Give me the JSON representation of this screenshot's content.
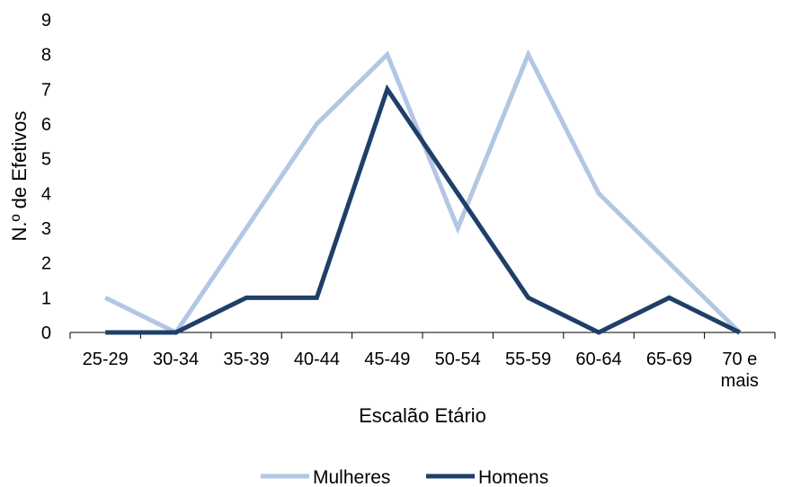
{
  "chart_data": {
    "type": "line",
    "title": "",
    "xlabel": "Escalão Etário",
    "ylabel": "N.º de Efetivos",
    "categories": [
      "25-29",
      "30-34",
      "35-39",
      "40-44",
      "45-49",
      "50-54",
      "55-59",
      "60-64",
      "65-69",
      "70 e mais"
    ],
    "ylim": [
      0,
      9
    ],
    "yticks": [
      "0",
      "1",
      "2",
      "3",
      "4",
      "5",
      "6",
      "7",
      "8",
      "9"
    ],
    "grid": false,
    "legend_position": "bottom",
    "series": [
      {
        "name": "Mulheres",
        "color": "#b3c6e4",
        "values": [
          1,
          0,
          3,
          6,
          8,
          3,
          8,
          4,
          2,
          0
        ]
      },
      {
        "name": "Homens",
        "color": "#1f3f68",
        "values": [
          0,
          0,
          1,
          1,
          7,
          4,
          1,
          0,
          1,
          0
        ]
      }
    ]
  }
}
